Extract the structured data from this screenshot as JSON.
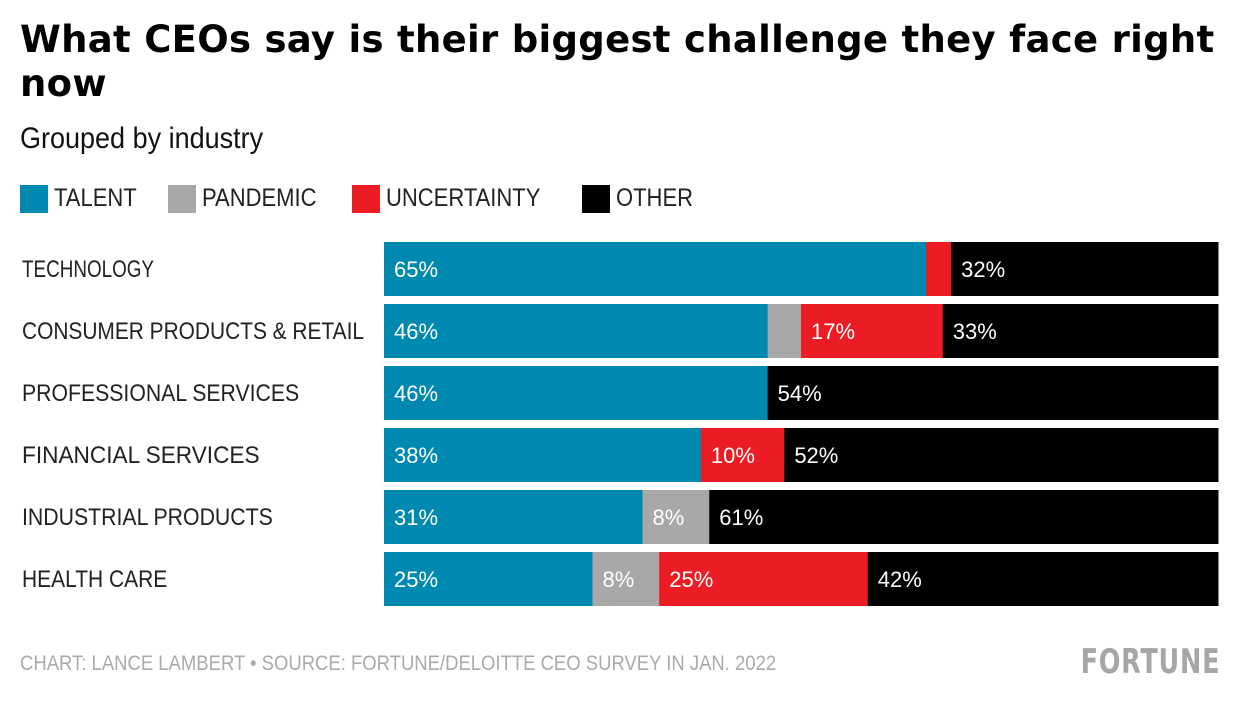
{
  "chart_data": {
    "type": "bar",
    "orientation": "horizontal",
    "stacked": true,
    "title": "What CEOs say is their biggest challenge they face right now",
    "subtitle": "Grouped by industry",
    "categories": [
      "TECHNOLOGY",
      "CONSUMER PRODUCTS & RETAIL",
      "PROFESSIONAL SERVICES",
      "FINANCIAL SERVICES",
      "INDUSTRIAL PRODUCTS",
      "HEALTH CARE"
    ],
    "series": [
      {
        "name": "TALENT",
        "color": "#0089b0",
        "values": [
          65,
          46,
          46,
          38,
          31,
          25
        ],
        "labels": [
          "65%",
          "46%",
          "46%",
          "38%",
          "31%",
          "25%"
        ]
      },
      {
        "name": "PANDEMIC",
        "color": "#a8a8a8",
        "values": [
          0,
          4,
          0,
          0,
          8,
          8
        ],
        "labels": [
          "",
          "",
          "",
          "",
          "8%",
          "8%"
        ]
      },
      {
        "name": "UNCERTAINTY",
        "color": "#ec1c24",
        "values": [
          3,
          17,
          0,
          10,
          0,
          25
        ],
        "labels": [
          "",
          "17%",
          "",
          "10%",
          "",
          "25%"
        ]
      },
      {
        "name": "OTHER",
        "color": "#000000",
        "values": [
          32,
          33,
          54,
          52,
          61,
          42
        ],
        "labels": [
          "32%",
          "33%",
          "54%",
          "52%",
          "61%",
          "42%"
        ]
      }
    ],
    "xlim": [
      0,
      100
    ],
    "legend_position": "top-left",
    "grid": false
  },
  "footer": {
    "source": "CHART: LANCE LAMBERT • SOURCE: FORTUNE/DELOITTE CEO SURVEY IN JAN. 2022",
    "logo": "FORTUNE"
  }
}
